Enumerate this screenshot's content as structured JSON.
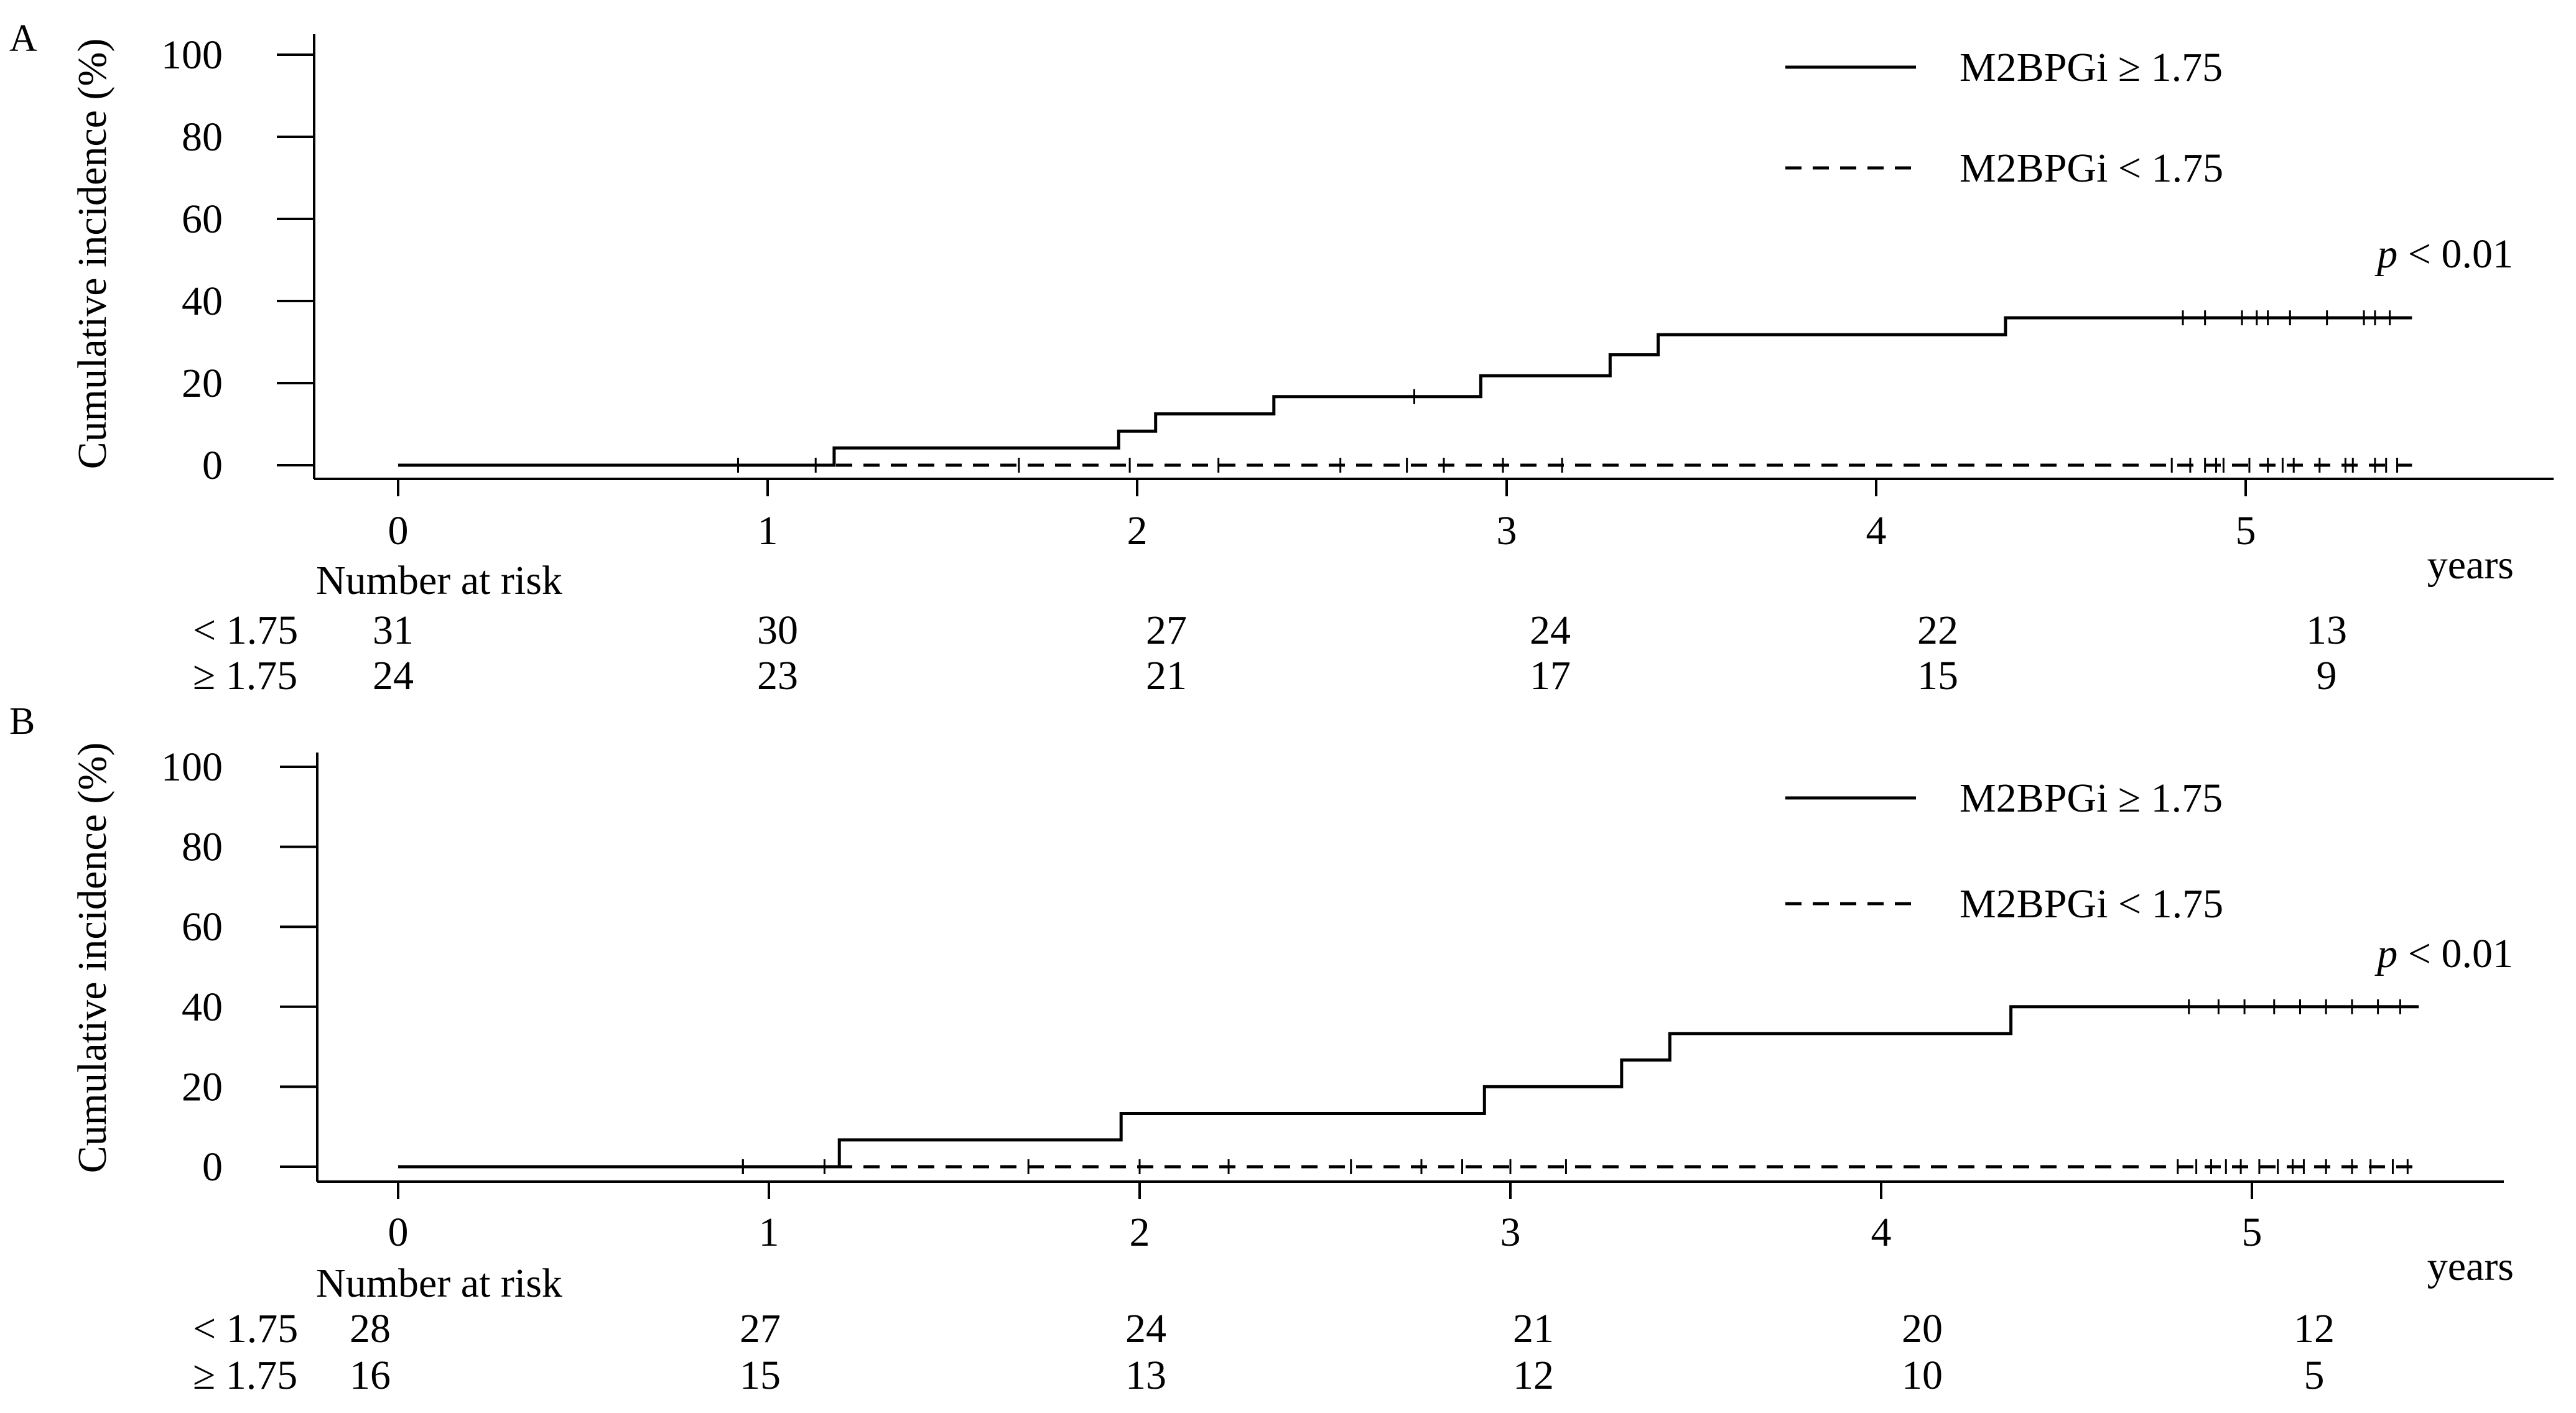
{
  "chart_data": [
    {
      "panel_label": "A",
      "type": "line",
      "ylabel": "Cumulative incidence  (%)",
      "xlabel": "years",
      "x_ticks": [
        "0",
        "1",
        "2",
        "3",
        "4",
        "5"
      ],
      "y_ticks": [
        "100",
        "80",
        "60",
        "40",
        "20",
        "0"
      ],
      "ylim": [
        0,
        100
      ],
      "xlim": [
        0,
        5.45
      ],
      "pvalue": {
        "italic": "p",
        "rest": " < 0.01"
      },
      "series": [
        {
          "name": "M2BPGi ≥ 1.75",
          "style": "solid",
          "steps": [
            [
              0,
              0
            ],
            [
              1.18,
              4.2
            ],
            [
              1.95,
              8.3
            ],
            [
              2.05,
              12.5
            ],
            [
              2.37,
              16.7
            ],
            [
              2.93,
              21.8
            ],
            [
              3.28,
              26.9
            ],
            [
              3.41,
              31.8
            ],
            [
              4.35,
              35.9
            ]
          ],
          "x_end": 5.45,
          "censor_x": [
            0.92,
            2.75,
            4.83,
            4.89,
            4.99,
            5.03,
            5.06,
            5.12,
            5.22,
            5.32,
            5.35,
            5.39
          ]
        },
        {
          "name": "M2BPGi < 1.75",
          "style": "dashed",
          "steps": [
            [
              0,
              0
            ]
          ],
          "x_end": 5.45,
          "censor_x": [
            0.92,
            1.13,
            1.68,
            1.98,
            2.22,
            2.55,
            2.73,
            2.83,
            2.99,
            3.15,
            4.8,
            4.85,
            4.89,
            4.92,
            4.94,
            5.01,
            5.06,
            5.1,
            5.13,
            5.2,
            5.27,
            5.29,
            5.35,
            5.38,
            5.41
          ]
        }
      ],
      "risk_table": {
        "title": "Number at risk",
        "rows": [
          {
            "label": "< 1.75",
            "values": [
              "31",
              "30",
              "27",
              "24",
              "22",
              "13"
            ]
          },
          {
            "label": "≥ 1.75",
            "values": [
              "24",
              "23",
              "21",
              "17",
              "15",
              "9"
            ]
          }
        ]
      }
    },
    {
      "panel_label": "B",
      "type": "line",
      "ylabel": "Cumulative incidence  (%)",
      "xlabel": "years",
      "x_ticks": [
        "0",
        "1",
        "2",
        "3",
        "4",
        "5"
      ],
      "y_ticks": [
        "100",
        "80",
        "60",
        "40",
        "20",
        "0"
      ],
      "ylim": [
        0,
        100
      ],
      "xlim": [
        0,
        5.45
      ],
      "pvalue": {
        "italic": "p",
        "rest": " < 0.01"
      },
      "series": [
        {
          "name": "M2BPGi ≥ 1.75",
          "style": "solid",
          "steps": [
            [
              0,
              0
            ],
            [
              1.19,
              6.7
            ],
            [
              1.95,
              13.3
            ],
            [
              2.93,
              20.0
            ],
            [
              3.3,
              26.7
            ],
            [
              3.43,
              33.3
            ],
            [
              4.35,
              40.0
            ]
          ],
          "x_end": 5.45,
          "censor_x": [
            0.93,
            4.83,
            4.91,
            4.98,
            5.06,
            5.13,
            5.2,
            5.27,
            5.34,
            5.4
          ]
        },
        {
          "name": "M2BPGi < 1.75",
          "style": "dashed",
          "steps": [
            [
              0,
              0
            ]
          ],
          "x_end": 5.45,
          "censor_x": [
            0.93,
            1.15,
            1.7,
            2.0,
            2.24,
            2.57,
            2.76,
            2.87,
            3.0,
            3.15,
            4.8,
            4.85,
            4.89,
            4.93,
            4.97,
            5.02,
            5.07,
            5.11,
            5.14,
            5.2,
            5.27,
            5.32,
            5.38,
            5.42
          ]
        }
      ],
      "risk_table": {
        "title": "Number at risk",
        "rows": [
          {
            "label": "< 1.75",
            "values": [
              "28",
              "27",
              "24",
              "21",
              "20",
              "12"
            ]
          },
          {
            "label": "≥ 1.75",
            "values": [
              "16",
              "15",
              "13",
              "12",
              "10",
              "5"
            ]
          }
        ]
      }
    }
  ]
}
